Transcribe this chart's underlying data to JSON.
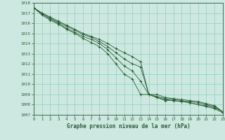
{
  "title": "Graphe pression niveau de la mer (hPa)",
  "xlabel_ticks": [
    0,
    1,
    2,
    3,
    4,
    5,
    6,
    7,
    8,
    9,
    10,
    11,
    12,
    13,
    14,
    15,
    16,
    17,
    18,
    19,
    20,
    21,
    22,
    23
  ],
  "ylim": [
    1007,
    1018
  ],
  "xlim": [
    0,
    23
  ],
  "yticks": [
    1007,
    1008,
    1009,
    1010,
    1011,
    1012,
    1013,
    1014,
    1015,
    1016,
    1017,
    1018
  ],
  "bg_color": "#cce8e0",
  "grid_color": "#99ccbb",
  "line_color": "#2a5e38",
  "marker": "+",
  "series": [
    [
      1017.5,
      1017.0,
      1016.6,
      1016.2,
      1015.8,
      1015.4,
      1015.0,
      1014.7,
      1014.4,
      1014.0,
      1013.5,
      1013.1,
      1012.7,
      1012.2,
      1009.0,
      1009.0,
      1008.7,
      1008.6,
      1008.5,
      1008.4,
      1008.3,
      1008.1,
      1007.9,
      1007.3
    ],
    [
      1017.5,
      1017.0,
      1016.5,
      1016.1,
      1015.7,
      1015.3,
      1014.9,
      1014.6,
      1014.2,
      1013.7,
      1013.1,
      1012.5,
      1012.0,
      1011.7,
      1009.0,
      1008.8,
      1008.6,
      1008.5,
      1008.4,
      1008.3,
      1008.2,
      1008.0,
      1007.8,
      1007.3
    ],
    [
      1017.5,
      1016.9,
      1016.4,
      1016.0,
      1015.5,
      1015.1,
      1014.7,
      1014.4,
      1014.0,
      1013.4,
      1012.6,
      1011.8,
      1011.3,
      1010.3,
      1009.0,
      1008.7,
      1008.5,
      1008.4,
      1008.3,
      1008.2,
      1008.0,
      1007.9,
      1007.7,
      1007.3
    ],
    [
      1017.5,
      1016.8,
      1016.3,
      1015.9,
      1015.4,
      1015.0,
      1014.5,
      1014.1,
      1013.7,
      1013.0,
      1012.0,
      1011.0,
      1010.5,
      1009.0,
      1009.0,
      1008.7,
      1008.4,
      1008.4,
      1008.3,
      1008.2,
      1008.0,
      1007.8,
      1007.6,
      1007.2
    ]
  ]
}
